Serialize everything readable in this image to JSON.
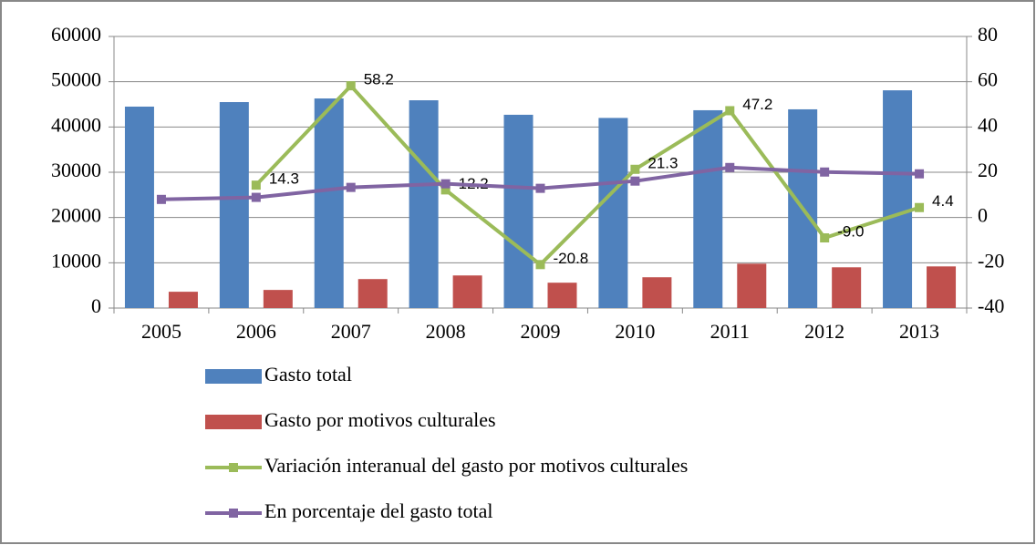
{
  "chart_data": {
    "type": "bar_line",
    "categories": [
      "2005",
      "2006",
      "2007",
      "2008",
      "2009",
      "2010",
      "2011",
      "2012",
      "2013"
    ],
    "series": [
      {
        "name": "Gasto total",
        "type": "bar",
        "color": "#4f81bd",
        "values": [
          44500,
          45500,
          46300,
          45900,
          42700,
          42000,
          43700,
          43900,
          48100
        ]
      },
      {
        "name": "Gasto por motivos culturales",
        "type": "bar",
        "color": "#c0504d",
        "values": [
          3600,
          4000,
          6400,
          7200,
          5600,
          6800,
          9800,
          9000,
          9200
        ]
      },
      {
        "name": "Variación interanual del gasto por motivos culturales",
        "type": "line",
        "axis": "y2",
        "color": "#9bbb59",
        "values": [
          null,
          14.3,
          58.2,
          12.2,
          -20.8,
          21.3,
          47.2,
          -9.0,
          4.4
        ],
        "value_labels": [
          null,
          "14.3",
          "58.2",
          "12.2",
          "-20.8",
          "21.3",
          "47.2",
          "-9.0",
          "4.4"
        ]
      },
      {
        "name": "En porcentaje del gasto total",
        "type": "line",
        "axis": "y2",
        "color": "#8064a2",
        "values": [
          8.0,
          8.9,
          13.3,
          14.9,
          12.9,
          16.1,
          22.1,
          20.1,
          19.3
        ]
      }
    ],
    "ylim": [
      0,
      60000
    ],
    "yticks": [
      0,
      10000,
      20000,
      30000,
      40000,
      50000,
      60000
    ],
    "y2lim": [
      -40,
      80
    ],
    "y2ticks": [
      -40,
      -20,
      0,
      20,
      40,
      60,
      80
    ],
    "grid": true,
    "legend": "bottom"
  }
}
